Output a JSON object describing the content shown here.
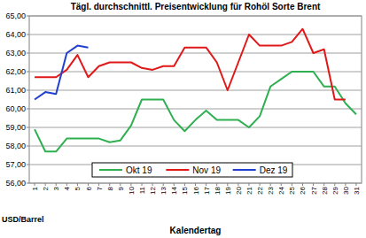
{
  "chart_data": {
    "type": "line",
    "title": "Tägl. durchschnittl. Preisentwicklung für Rohöl Sorte Brent",
    "x_label": "Kalendertag",
    "y_label": "USD/Barrel",
    "categories": [
      "1",
      "2",
      "3",
      "4",
      "5",
      "6",
      "7",
      "8",
      "9",
      "10",
      "11",
      "12",
      "13",
      "14",
      "15",
      "16",
      "17",
      "18",
      "19",
      "20",
      "21",
      "22",
      "23",
      "24",
      "25",
      "26",
      "27",
      "28",
      "29",
      "30",
      "31"
    ],
    "series": [
      {
        "name": "Okt 19",
        "color": "#2eb050",
        "values": [
          58.9,
          57.7,
          57.7,
          58.4,
          58.4,
          58.4,
          58.4,
          58.2,
          58.3,
          59.1,
          60.5,
          60.5,
          60.5,
          59.4,
          58.8,
          59.4,
          59.9,
          59.4,
          59.4,
          59.4,
          59.0,
          59.6,
          61.2,
          61.6,
          62.0,
          62.0,
          62.0,
          61.2,
          61.2,
          60.3,
          59.7
        ]
      },
      {
        "name": "Nov 19",
        "color": "#e01818",
        "values": [
          61.7,
          61.7,
          61.7,
          62.1,
          62.9,
          61.7,
          62.3,
          62.5,
          62.5,
          62.5,
          62.2,
          62.1,
          62.3,
          62.3,
          63.3,
          63.3,
          63.3,
          62.5,
          61.0,
          62.5,
          64.0,
          63.4,
          63.4,
          63.4,
          63.6,
          64.3,
          63.0,
          63.2,
          60.5,
          60.5,
          null
        ]
      },
      {
        "name": "Dez 19",
        "color": "#2040d0",
        "values": [
          60.5,
          60.9,
          60.8,
          63.0,
          63.4,
          63.3,
          null,
          null,
          null,
          null,
          null,
          null,
          null,
          null,
          null,
          null,
          null,
          null,
          null,
          null,
          null,
          null,
          null,
          null,
          null,
          null,
          null,
          null,
          null,
          null,
          null
        ]
      }
    ],
    "ylim": [
      56,
      65
    ],
    "yticks": [
      {
        "value": 56,
        "label": "56,00"
      },
      {
        "value": 57,
        "label": "57,00"
      },
      {
        "value": 58,
        "label": "58,00"
      },
      {
        "value": 59,
        "label": "59,00"
      },
      {
        "value": 60,
        "label": "60,00"
      },
      {
        "value": 61,
        "label": "61,00"
      },
      {
        "value": 62,
        "label": "62,00"
      },
      {
        "value": 63,
        "label": "63,00"
      },
      {
        "value": 64,
        "label": "64,00"
      },
      {
        "value": 65,
        "label": "65,00"
      }
    ],
    "grid": true,
    "legend": "bottom"
  }
}
